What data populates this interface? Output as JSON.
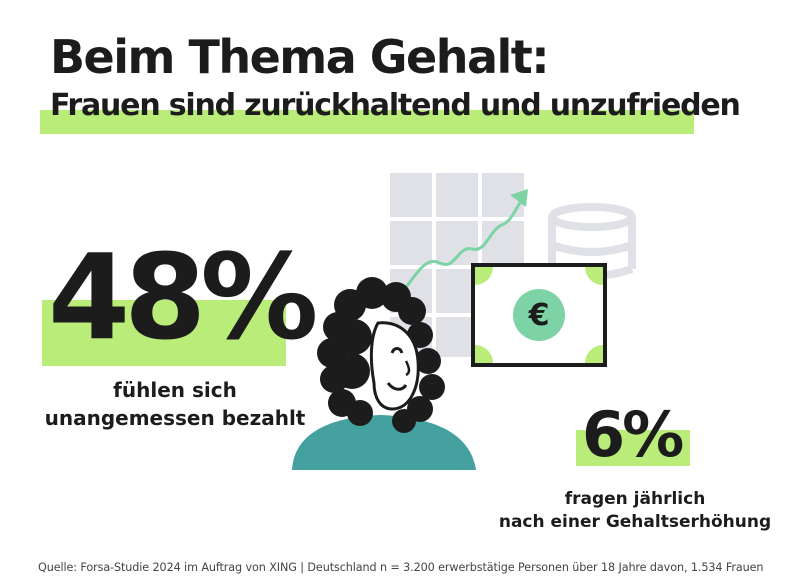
{
  "title": "Beim Thema Gehalt:",
  "subtitle": "Frauen sind zurückhaltend und unzufrieden",
  "stat_primary": {
    "value": "48%",
    "line1": "fühlen sich",
    "line2": "unangemessen bezahlt"
  },
  "stat_secondary": {
    "value": "6%",
    "line1": "fragen jährlich",
    "line2": "nach einer Gehaltserhöhung"
  },
  "illustration": {
    "icons": [
      "grid-panel-icon",
      "growth-arrow-icon",
      "coin-stack-icon",
      "banknote-icon",
      "euro-icon",
      "woman-avatar-icon"
    ],
    "currency_symbol": "€"
  },
  "source": "Quelle: Forsa-Studie 2024 im Auftrag von XING | Deutschland n = 3.200 erwerbstätige Personen über 18 Jahre davon, 1.534 Frauen",
  "colors": {
    "accent_green": "#b9ec78",
    "dark": "#1c1c1c",
    "teal": "#45a0a0",
    "grid_gray": "#dfe1e6",
    "euro_green": "#7dd3a5"
  }
}
